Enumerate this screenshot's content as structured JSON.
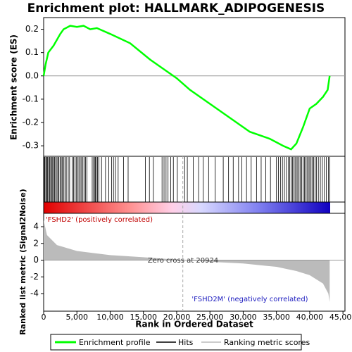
{
  "chart_data": [
    {
      "type": "line",
      "title": "Enrichment plot: HALLMARK_ADIPOGENESIS",
      "ylabel": "Enrichment score (ES)",
      "xlim": [
        0,
        45300
      ],
      "ylim": [
        -0.345,
        0.25
      ],
      "yticks": [
        {
          "value": 0.2,
          "label": "0.2"
        },
        {
          "value": 0.1,
          "label": "0.1"
        },
        {
          "value": 0,
          "label": "0.0"
        },
        {
          "value": -0.1,
          "label": "-0.1"
        },
        {
          "value": -0.2,
          "label": "-0.2"
        },
        {
          "value": -0.3,
          "label": "-0.3"
        }
      ],
      "x": [
        0,
        300,
        700,
        1500,
        2500,
        3000,
        4000,
        5000,
        6000,
        7000,
        8000,
        10000,
        13000,
        16000,
        18000,
        20000,
        22000,
        25000,
        28000,
        31000,
        34000,
        36000,
        37200,
        38000,
        39000,
        40000,
        41000,
        42000,
        42700,
        43000
      ],
      "series": [
        {
          "name": "Enrichment profile",
          "color": "#00ff00",
          "values": [
            0,
            0.05,
            0.1,
            0.13,
            0.18,
            0.2,
            0.215,
            0.21,
            0.215,
            0.2,
            0.205,
            0.18,
            0.14,
            0.07,
            0.03,
            -0.01,
            -0.06,
            -0.12,
            -0.18,
            -0.24,
            -0.27,
            -0.3,
            -0.315,
            -0.29,
            -0.22,
            -0.14,
            -0.12,
            -0.09,
            -0.06,
            0
          ]
        }
      ]
    },
    {
      "type": "hits",
      "name": "Hits",
      "color": "#000000",
      "xlim": [
        0,
        45300
      ],
      "x": [
        100,
        200,
        350,
        500,
        600,
        750,
        900,
        1050,
        1200,
        1350,
        1500,
        1650,
        1800,
        2000,
        2150,
        2300,
        2500,
        2650,
        2800,
        3000,
        3200,
        3400,
        3700,
        3900,
        4300,
        4500,
        4700,
        4900,
        5100,
        5300,
        5500,
        5700,
        5900,
        6100,
        6300,
        6500,
        7300,
        7500,
        7700,
        7800,
        7900,
        8100,
        8300,
        8700,
        9300,
        9800,
        10200,
        10500,
        10800,
        11200,
        12000,
        12700,
        15300,
        15900,
        16500,
        17800,
        18100,
        18400,
        18700,
        19100,
        19500,
        20100,
        21200,
        21600,
        22500,
        23300,
        24000,
        24800,
        25800,
        27000,
        27800,
        28500,
        29300,
        29800,
        30500,
        31200,
        32000,
        32700,
        33400,
        34100,
        35000,
        35300,
        35600,
        35900,
        36200,
        36500,
        36800,
        37000,
        37200,
        37400,
        37600,
        37800,
        38000,
        38200,
        38400,
        38600,
        38800,
        39000,
        39200,
        39400,
        39600,
        39800,
        40000,
        40200,
        40400,
        40600,
        40800,
        41000,
        41300,
        41600,
        41900,
        42200,
        42500,
        42800,
        43000
      ]
    },
    {
      "type": "area",
      "name": "Ranking metric scores",
      "color": "#bbbbbb",
      "ylabel": "Ranked list metric (Signal2Noise)",
      "xlabel": "Rank in Ordered Dataset",
      "xlim": [
        0,
        45300
      ],
      "ylim": [
        -6.1,
        5.6
      ],
      "xticks": [
        0,
        {
          "value": 5000,
          "label": "5,000"
        },
        {
          "value": 10000,
          "label": "10,000"
        },
        {
          "value": 15000,
          "label": "15,000"
        },
        {
          "value": 20000,
          "label": "20,000"
        },
        {
          "value": 25000,
          "label": "25,000"
        },
        {
          "value": 30000,
          "label": "30,000"
        },
        {
          "value": 35000,
          "label": "35,000"
        },
        {
          "value": 40000,
          "label": "40,000"
        },
        {
          "value": 45000,
          "label": "45,000"
        }
      ],
      "yticks": [
        4,
        2,
        0,
        -2,
        -4
      ],
      "x": [
        0,
        500,
        2000,
        5000,
        10000,
        15000,
        20924,
        25000,
        30000,
        35000,
        38000,
        40000,
        42000,
        42800,
        43000
      ],
      "values": [
        4.8,
        3,
        1.8,
        1.1,
        0.6,
        0.35,
        0,
        -0.2,
        -0.4,
        -0.8,
        -1.3,
        -1.8,
        -2.8,
        -4,
        -5
      ],
      "zero_cross": 20924,
      "annotations": [
        "'FSHD2' (positively correlated)",
        "Zero cross at 20924",
        "'FSHD2M' (negatively correlated)"
      ]
    }
  ]
}
